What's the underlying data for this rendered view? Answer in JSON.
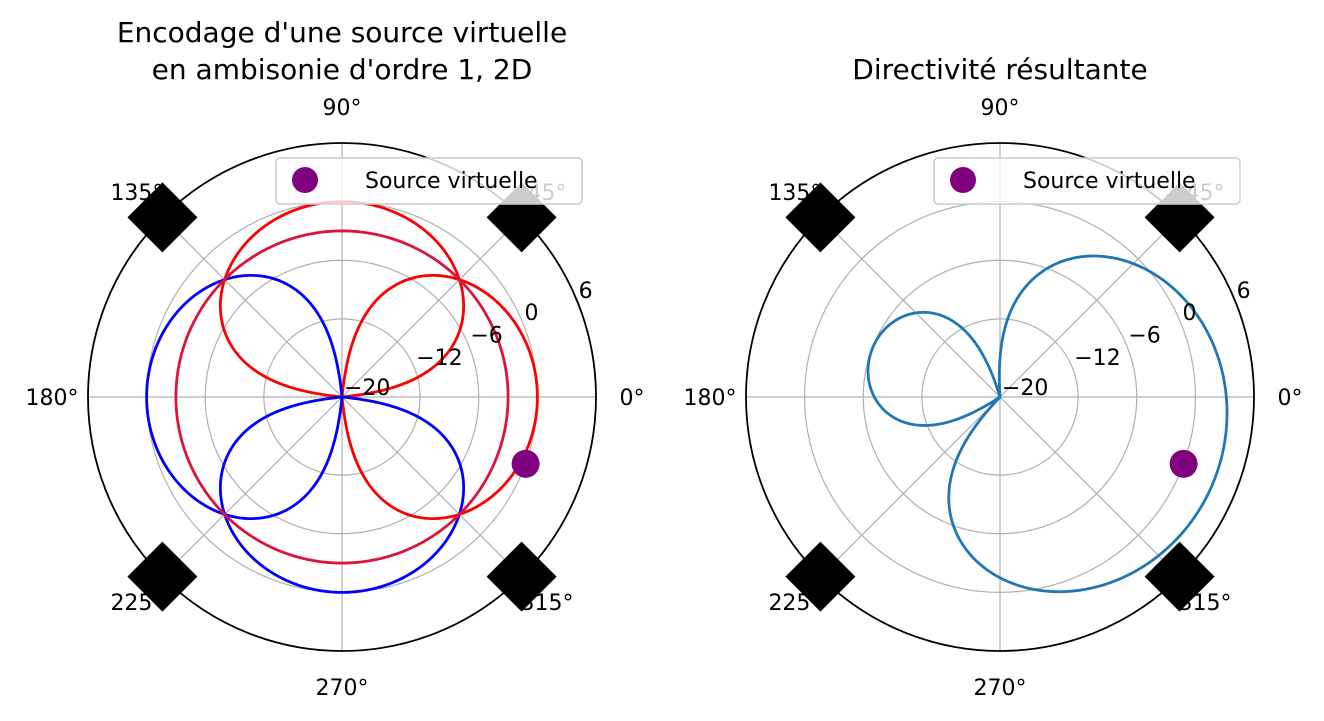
{
  "chart_data": [
    {
      "type": "polar-line",
      "title_lines": [
        "Encodage d'une source virtuelle",
        "en ambisonie d'ordre 1, 2D"
      ],
      "angle_ticks_deg": [
        0,
        45,
        90,
        135,
        180,
        225,
        270,
        315
      ],
      "angle_tick_labels": [
        "0°",
        "45°",
        "90°",
        "135°",
        "180°",
        "225°",
        "270°",
        "315°"
      ],
      "radial_unit": "dB",
      "radial_range": [
        -20,
        6
      ],
      "radial_ticks": [
        -20,
        -12,
        -6,
        0,
        6
      ],
      "radial_tick_labels": [
        "−20",
        "−12",
        "−6",
        "0",
        "6"
      ],
      "radial_label_angle_deg": 22.5,
      "grid": true,
      "legend": {
        "placement": "top-right",
        "entries": [
          "Source virtuelle"
        ]
      },
      "loudspeakers_deg": [
        45,
        135,
        225,
        315
      ],
      "source": {
        "azimuth_deg": -20,
        "radius_db": 0,
        "color": "#800080"
      },
      "series": [
        {
          "pattern": "cos",
          "sign": "positive",
          "color": "#ff0000"
        },
        {
          "pattern": "cos",
          "sign": "negative",
          "color": "#0000ff"
        },
        {
          "pattern": "sin",
          "sign": "positive",
          "color": "#ff0000"
        },
        {
          "pattern": "sin",
          "sign": "negative",
          "color": "#0000ff"
        },
        {
          "pattern": "omni",
          "level_db": -3,
          "color": "#dc143c"
        }
      ]
    },
    {
      "type": "polar-line",
      "title_lines": [
        "Directivité résultante"
      ],
      "angle_ticks_deg": [
        0,
        45,
        90,
        135,
        180,
        225,
        270,
        315
      ],
      "angle_tick_labels": [
        "0°",
        "45°",
        "90°",
        "135°",
        "180°",
        "225°",
        "270°",
        "315°"
      ],
      "radial_unit": "dB",
      "radial_range": [
        -20,
        6
      ],
      "radial_ticks": [
        -20,
        -12,
        -6,
        0,
        6
      ],
      "radial_tick_labels": [
        "−20",
        "−12",
        "−6",
        "0",
        "6"
      ],
      "radial_label_angle_deg": 22.5,
      "grid": true,
      "legend": {
        "placement": "top-right",
        "entries": [
          "Source virtuelle"
        ]
      },
      "loudspeakers_deg": [
        45,
        135,
        225,
        315
      ],
      "source": {
        "azimuth_deg": -20,
        "radius_db": 0,
        "color": "#800080"
      },
      "series": [
        {
          "pattern": "resultant",
          "azimuth_deg": -20,
          "color": "#1f77b4"
        }
      ]
    }
  ],
  "colors": {
    "axis": "#000000",
    "grid": "#b0b0b0",
    "speaker": "#000000"
  }
}
